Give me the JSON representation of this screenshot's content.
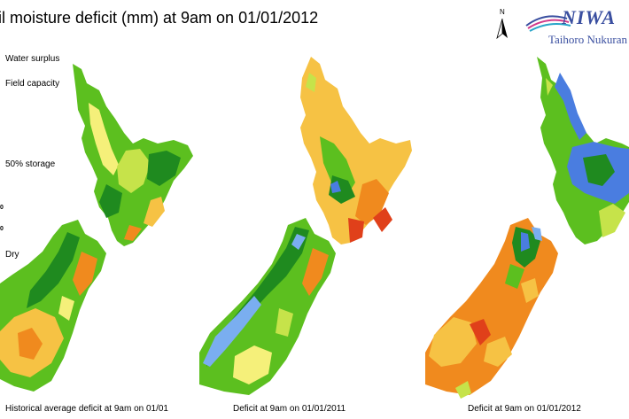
{
  "title": "il moisture deficit (mm) at 9am on 01/01/2012",
  "north_label": "N",
  "logo": {
    "word": "NIWA",
    "subtitle": "Taihoro Nukuran"
  },
  "legend": {
    "labels": [
      "Water surplus",
      "Field capacity",
      "50% storage",
      "Dry"
    ],
    "ticks": [
      "0",
      "0"
    ]
  },
  "maps": [
    {
      "caption": "Historical average deficit at 9am on 01/01",
      "scheme": "historical"
    },
    {
      "caption": "Deficit at  9am on 01/01/2011",
      "scheme": "y2011"
    },
    {
      "caption": "Deficit at  9am on 01/01/2012",
      "scheme": "y2012"
    }
  ],
  "colors": {
    "surplus": "#4a7de0",
    "wet_blue": "#7aaef0",
    "dark_green": "#1f8a1f",
    "green": "#5cbf1f",
    "yellow_green": "#c6e34a",
    "yellow": "#f5f07a",
    "light_orange": "#f6c244",
    "orange": "#f08a1e",
    "red_orange": "#e0401a"
  }
}
